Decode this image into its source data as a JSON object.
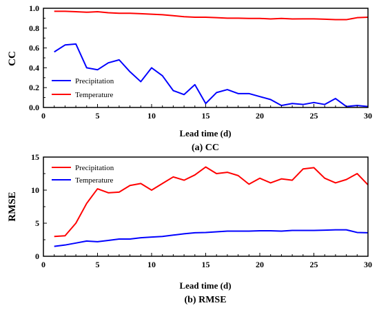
{
  "chart_data": [
    {
      "type": "line",
      "caption": "(a) CC",
      "xlabel": "Lead time (d)",
      "ylabel": "CC",
      "xlim": [
        0,
        30
      ],
      "ylim": [
        0,
        1.0
      ],
      "xticks": [
        "0",
        "5",
        "10",
        "15",
        "20",
        "25",
        "30"
      ],
      "yticks": [
        "0.0",
        "0.2",
        "0.4",
        "0.6",
        "0.8",
        "1.0"
      ],
      "grid": false,
      "legend_position": "bottom-left",
      "x": [
        1,
        2,
        3,
        4,
        5,
        6,
        7,
        8,
        9,
        10,
        11,
        12,
        13,
        14,
        15,
        16,
        17,
        18,
        19,
        20,
        21,
        22,
        23,
        24,
        25,
        26,
        27,
        28,
        29,
        30
      ],
      "series": [
        {
          "name": "Precipitation",
          "color": "#0000ff",
          "values": [
            0.56,
            0.63,
            0.64,
            0.4,
            0.38,
            0.45,
            0.48,
            0.36,
            0.26,
            0.4,
            0.32,
            0.17,
            0.13,
            0.23,
            0.04,
            0.15,
            0.18,
            0.14,
            0.14,
            0.11,
            0.08,
            0.02,
            0.04,
            0.03,
            0.05,
            0.03,
            0.09,
            0.01,
            0.02,
            0.01
          ]
        },
        {
          "name": "Temperature",
          "color": "#ff0000",
          "values": [
            0.97,
            0.97,
            0.965,
            0.96,
            0.965,
            0.955,
            0.95,
            0.95,
            0.945,
            0.94,
            0.935,
            0.925,
            0.915,
            0.91,
            0.91,
            0.905,
            0.9,
            0.9,
            0.898,
            0.898,
            0.892,
            0.898,
            0.892,
            0.893,
            0.893,
            0.89,
            0.885,
            0.885,
            0.905,
            0.91
          ]
        }
      ]
    },
    {
      "type": "line",
      "caption": "(b) RMSE",
      "xlabel": "Lead time (d)",
      "ylabel": "RMSE",
      "xlim": [
        0,
        30
      ],
      "ylim": [
        0,
        15
      ],
      "xticks": [
        "0",
        "5",
        "10",
        "15",
        "20",
        "25",
        "30"
      ],
      "yticks": [
        "0",
        "5",
        "10",
        "15"
      ],
      "grid": false,
      "legend_position": "top-left",
      "x": [
        1,
        2,
        3,
        4,
        5,
        6,
        7,
        8,
        9,
        10,
        11,
        12,
        13,
        14,
        15,
        16,
        17,
        18,
        19,
        20,
        21,
        22,
        23,
        24,
        25,
        26,
        27,
        28,
        29,
        30
      ],
      "series": [
        {
          "name": "Precipitation",
          "color": "#ff0000",
          "values": [
            3.0,
            3.1,
            5.0,
            8.0,
            10.2,
            9.6,
            9.7,
            10.7,
            11.0,
            10.0,
            11.0,
            12.0,
            11.5,
            12.3,
            13.5,
            12.5,
            12.7,
            12.2,
            10.9,
            11.8,
            11.1,
            11.7,
            11.5,
            13.2,
            13.4,
            11.8,
            11.1,
            11.6,
            12.5,
            10.8
          ]
        },
        {
          "name": "Temperature",
          "color": "#0000ff",
          "values": [
            1.5,
            1.7,
            2.0,
            2.3,
            2.2,
            2.4,
            2.6,
            2.6,
            2.8,
            2.9,
            3.0,
            3.2,
            3.4,
            3.55,
            3.6,
            3.7,
            3.8,
            3.8,
            3.8,
            3.85,
            3.85,
            3.8,
            3.9,
            3.9,
            3.9,
            3.95,
            4.0,
            4.0,
            3.6,
            3.55
          ]
        }
      ]
    }
  ]
}
